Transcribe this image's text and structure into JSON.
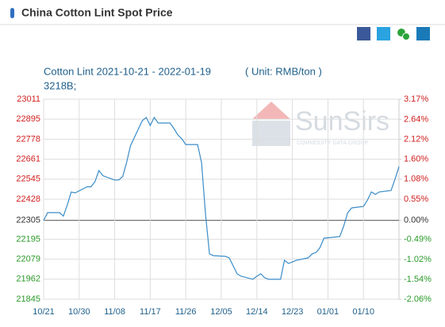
{
  "header": {
    "title": "China Cotton Lint Spot Price"
  },
  "chart_data": {
    "type": "line",
    "title": "Cotton Lint 2021-10-21 - 2022-01-19",
    "unit": "( Unit: RMB/ton )",
    "subtitle": "3218B;",
    "watermark": {
      "brand": "SunSirs",
      "tagline": "COMMODITY DATA GROUP"
    },
    "x": [
      "10/21",
      "10/22",
      "10/25",
      "10/26",
      "10/27",
      "10/28",
      "10/29",
      "11/01",
      "11/02",
      "11/03",
      "11/04",
      "11/05",
      "11/08",
      "11/09",
      "11/10",
      "11/11",
      "11/12",
      "11/15",
      "11/16",
      "11/17",
      "11/18",
      "11/19",
      "11/22",
      "11/23",
      "11/24",
      "11/25",
      "11/26",
      "11/29",
      "11/30",
      "12/01",
      "12/02",
      "12/03",
      "12/06",
      "12/07",
      "12/08",
      "12/09",
      "12/10",
      "12/13",
      "12/14",
      "12/15",
      "12/16",
      "12/17",
      "12/20",
      "12/21",
      "12/22",
      "12/23",
      "12/24",
      "12/27",
      "12/28",
      "12/29",
      "12/30",
      "12/31",
      "01/04",
      "01/05",
      "01/06",
      "01/07",
      "01/10",
      "01/11",
      "01/12",
      "01/13",
      "01/14",
      "01/17",
      "01/18",
      "01/19"
    ],
    "series": [
      {
        "name": "Cotton Lint",
        "color": "#3a8cc8",
        "values": [
          22305,
          22350,
          22350,
          22330,
          22395,
          22470,
          22465,
          22500,
          22500,
          22530,
          22595,
          22565,
          22540,
          22540,
          22560,
          22640,
          22740,
          22886,
          22905,
          22858,
          22905,
          22872,
          22872,
          22840,
          22803,
          22780,
          22747,
          22747,
          22641,
          22340,
          22109,
          22099,
          22095,
          22086,
          22040,
          21993,
          21979,
          21961,
          21979,
          21993,
          21970,
          21961,
          21961,
          22072,
          22053,
          22062,
          22072,
          22086,
          22109,
          22118,
          22146,
          22201,
          22210,
          22271,
          22349,
          22377,
          22386,
          22423,
          22470,
          22456,
          22470,
          22479,
          22545,
          22618
        ]
      }
    ],
    "xticks": [
      "10/21",
      "10/30",
      "11/08",
      "11/17",
      "11/26",
      "12/05",
      "12/14",
      "12/23",
      "01/01",
      "01/10"
    ],
    "ylim": [
      21845,
      23011
    ],
    "yticks": [
      23011,
      22895,
      22778,
      22661,
      22545,
      22428,
      22305,
      22195,
      22079,
      21962,
      21845
    ],
    "y2lim": [
      -2.06,
      3.17
    ],
    "y2ticks": [
      {
        "value": 3.17,
        "label": "3.17%"
      },
      {
        "value": 2.64,
        "label": "2.64%"
      },
      {
        "value": 2.12,
        "label": "2.12%"
      },
      {
        "value": 1.6,
        "label": "1.60%"
      },
      {
        "value": 1.08,
        "label": "1.08%"
      },
      {
        "value": 0.55,
        "label": "0.55%"
      },
      {
        "value": 0,
        "label": "0.00%"
      },
      {
        "value": -0.49,
        "label": "-0.49%"
      },
      {
        "value": -1.02,
        "label": "-1.02%"
      },
      {
        "value": -1.54,
        "label": "-1.54%"
      },
      {
        "value": -2.06,
        "label": "-2.06%"
      }
    ],
    "grid": true,
    "up_color": "#d02020",
    "down_color": "#2a9a2a",
    "base_color": "#333333"
  }
}
